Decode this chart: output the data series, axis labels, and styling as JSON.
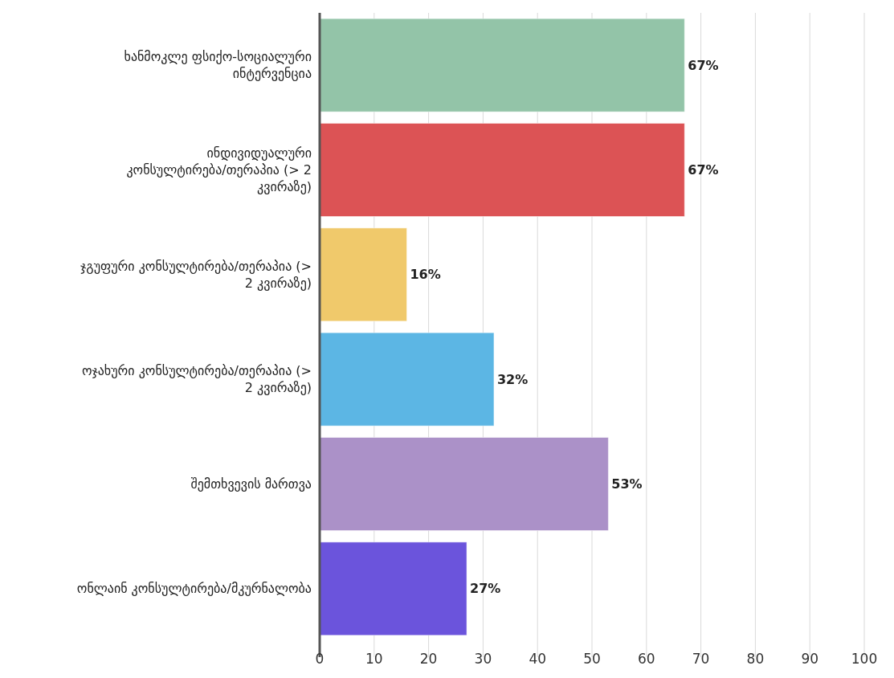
{
  "chart_data": {
    "type": "bar",
    "orientation": "horizontal",
    "categories": [
      "ხანმოკლე ფსიქო-სოციალური ინტერვენცია",
      "ინდივიდუალური კონსულტირება/თერაპია (> 2 კვირაზე)",
      "ჯგუფური კონსულტირება/თერაპია (> 2 კვირაზე)",
      "ოჯახური კონსულტირება/თერაპია (> 2 კვირაზე)",
      "შემთხვევის მართვა",
      "ონლაინ კონსულტირება/მკურნალობა"
    ],
    "values": [
      67,
      67,
      16,
      32,
      53,
      27
    ],
    "colors": [
      "#93c4a8",
      "#dc5355",
      "#f0c96b",
      "#5cb6e4",
      "#ab91c8",
      "#6b54dc"
    ],
    "value_labels": [
      "67%",
      "67%",
      "16%",
      "32%",
      "53%",
      "27%"
    ],
    "xlim": [
      0,
      100
    ],
    "xticks": [
      0,
      10,
      20,
      30,
      40,
      50,
      60,
      70,
      80,
      90,
      100
    ],
    "grid": "x"
  }
}
